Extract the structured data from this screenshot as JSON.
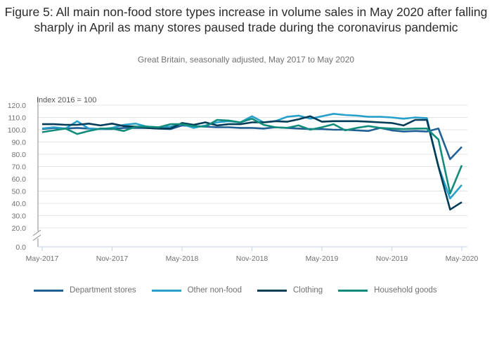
{
  "chart_data": {
    "type": "line",
    "title": "Figure 5: All main non-food store types increase in volume sales in May 2020 after falling sharply in April as many stores paused trade during the coronavirus pandemic",
    "subtitle": "Great Britain, seasonally adjusted, May 2017 to May 2020",
    "ylabel": "Index 2016 = 100",
    "xlabel": "",
    "ylim": [
      0,
      120
    ],
    "y_axis_break": true,
    "y_ticks": [
      "120.0",
      "110.0",
      "100.0",
      "90.0",
      "80.0",
      "70.0",
      "60.0",
      "50.0",
      "40.0",
      "30.0",
      "20.0",
      "0.0"
    ],
    "x_ticks": [
      "May-2017",
      "Nov-2017",
      "May-2018",
      "Nov-2018",
      "May-2019",
      "Nov-2019",
      "May-2020"
    ],
    "grid": true,
    "legend_position": "bottom",
    "x": [
      "May-2017",
      "Jun-2017",
      "Jul-2017",
      "Aug-2017",
      "Sep-2017",
      "Oct-2017",
      "Nov-2017",
      "Dec-2017",
      "Jan-2018",
      "Feb-2018",
      "Mar-2018",
      "Apr-2018",
      "May-2018",
      "Jun-2018",
      "Jul-2018",
      "Aug-2018",
      "Sep-2018",
      "Oct-2018",
      "Nov-2018",
      "Dec-2018",
      "Jan-2019",
      "Feb-2019",
      "Mar-2019",
      "Apr-2019",
      "May-2019",
      "Jun-2019",
      "Jul-2019",
      "Aug-2019",
      "Sep-2019",
      "Oct-2019",
      "Nov-2019",
      "Dec-2019",
      "Jan-2020",
      "Feb-2020",
      "Mar-2020",
      "Apr-2020",
      "May-2020"
    ],
    "series": [
      {
        "name": "Department stores",
        "color": "#206095",
        "values": [
          100.5,
          101.5,
          101.0,
          101.5,
          101.0,
          100.5,
          100.5,
          101.5,
          101.5,
          101.5,
          101.0,
          100.5,
          103.5,
          103.0,
          102.5,
          102.0,
          102.0,
          101.5,
          101.5,
          101.0,
          102.0,
          101.5,
          101.0,
          100.5,
          100.5,
          100.0,
          100.0,
          99.5,
          99.0,
          101.5,
          99.5,
          98.5,
          99.0,
          98.5,
          101.0,
          76.0,
          86.0
        ]
      },
      {
        "name": "Other non-food",
        "color": "#27a0cc",
        "values": [
          101.0,
          102.0,
          101.0,
          107.0,
          101.0,
          100.5,
          101.5,
          104.0,
          105.0,
          102.5,
          102.0,
          102.5,
          104.5,
          101.5,
          103.5,
          106.0,
          107.0,
          106.0,
          111.0,
          106.0,
          107.0,
          110.5,
          111.5,
          109.0,
          111.0,
          113.0,
          112.0,
          111.5,
          110.5,
          110.5,
          110.0,
          109.0,
          110.0,
          109.5,
          70.0,
          44.0,
          55.0
        ]
      },
      {
        "name": "Clothing",
        "color": "#003c57",
        "values": [
          104.5,
          104.5,
          104.0,
          104.0,
          105.0,
          103.5,
          105.0,
          103.0,
          102.5,
          101.5,
          101.0,
          101.0,
          105.5,
          104.0,
          106.0,
          103.5,
          104.5,
          104.5,
          106.0,
          106.0,
          107.0,
          106.5,
          108.5,
          111.0,
          106.5,
          107.0,
          107.0,
          107.0,
          106.5,
          106.0,
          105.5,
          103.5,
          108.0,
          108.0,
          70.0,
          35.0,
          41.0
        ]
      },
      {
        "name": "Household goods",
        "color": "#118c7b",
        "values": [
          98.0,
          99.5,
          101.0,
          96.5,
          99.0,
          101.0,
          101.0,
          99.0,
          102.5,
          102.5,
          102.0,
          104.5,
          104.5,
          103.0,
          102.5,
          108.0,
          107.5,
          106.0,
          109.0,
          104.0,
          102.0,
          101.5,
          103.5,
          100.0,
          102.0,
          104.5,
          99.5,
          101.5,
          103.0,
          101.5,
          101.0,
          100.5,
          101.0,
          101.0,
          92.0,
          48.0,
          71.0
        ]
      }
    ]
  }
}
